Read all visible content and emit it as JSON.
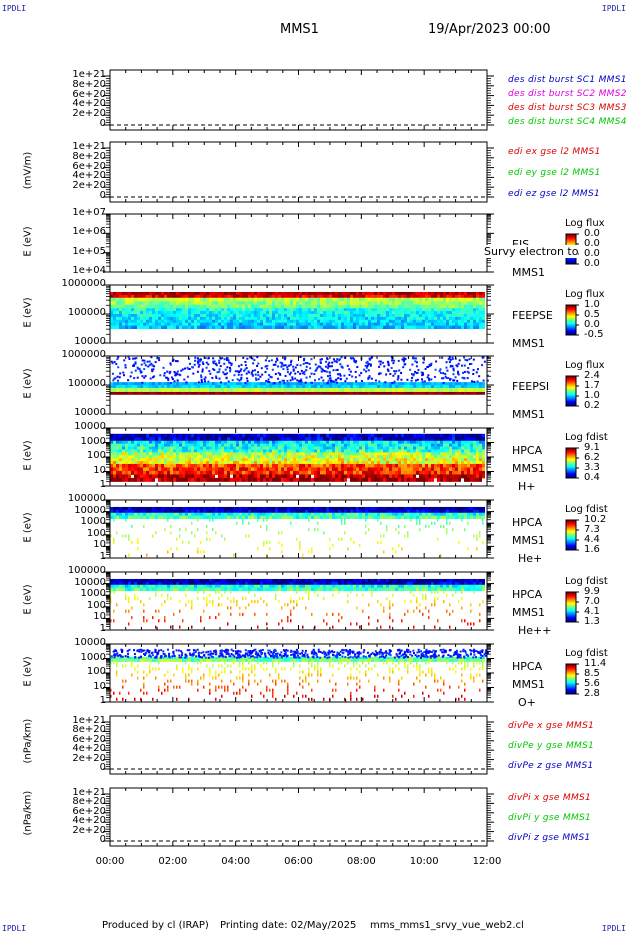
{
  "corners": {
    "tl": "IPDLI",
    "tr": "IPDLI",
    "bl": "IPDLI",
    "br": "IPDLI"
  },
  "header": {
    "spacecraft": "MMS1",
    "date": "19/Apr/2023 00:00"
  },
  "footer": {
    "produced": "Produced by  cl (IRAP)",
    "printing": "Printing date: 02/May/2025",
    "script": "mms_mms1_srvy_vue_web2.cl"
  },
  "xaxis": {
    "ticks": [
      "00:00",
      "02:00",
      "04:00",
      "06:00",
      "08:00",
      "10:00",
      "12:00"
    ]
  },
  "colors": {
    "c_blue": "#0000c8",
    "c_magenta": "#e000e0",
    "c_red": "#dd0000",
    "c_green": "#00c800"
  },
  "chart_data": [
    {
      "type": "line",
      "ylabel": "",
      "yticks": [
        "1e+21",
        "8e+20",
        "6e+20",
        "4e+20",
        "2e+20",
        "0"
      ],
      "series": [
        {
          "name": "des dist burst SC1 MMS1",
          "color": "#0000c8"
        },
        {
          "name": "des dist burst SC2 MMS2",
          "color": "#e000e0"
        },
        {
          "name": "des dist burst SC3 MMS3",
          "color": "#dd0000"
        },
        {
          "name": "des dist burst SC4 MMS4",
          "color": "#00c800"
        }
      ]
    },
    {
      "type": "line",
      "ylabel": "(mV/m)",
      "yticks": [
        "1e+21",
        "8e+20",
        "6e+20",
        "4e+20",
        "2e+20",
        "0"
      ],
      "series": [
        {
          "name": "edi ex gse l2 MMS1",
          "color": "#dd0000"
        },
        {
          "name": "edi ey gse l2 MMS1",
          "color": "#00c800"
        },
        {
          "name": "edi ez gse l2 MMS1",
          "color": "#0000c8"
        }
      ]
    },
    {
      "type": "heatmap",
      "ylabel": "E (eV)",
      "yticks": [
        "1e+07",
        "1e+06",
        "1e+05",
        "1e+04"
      ],
      "inst": [
        "EIS",
        "MMS1"
      ],
      "overlay": "Survy electron to",
      "cbar_title": "Log flux",
      "cbar_values": [
        "0.0",
        "0.0",
        "0.0",
        "0.0"
      ]
    },
    {
      "type": "heatmap",
      "ylabel": "E (eV)",
      "yticks": [
        "1000000",
        "100000",
        "10000"
      ],
      "inst": [
        "FEEPSE",
        "MMS1"
      ],
      "cbar_title": "Log flux",
      "cbar_values": [
        "1.0",
        "0.5",
        "0.0",
        "-0.5"
      ]
    },
    {
      "type": "heatmap",
      "ylabel": "E (eV)",
      "yticks": [
        "1000000",
        "100000",
        "10000"
      ],
      "inst": [
        "FEEPSI",
        "MMS1"
      ],
      "cbar_title": "Log flux",
      "cbar_values": [
        "2.4",
        "1.7",
        "1.0",
        "0.2"
      ]
    },
    {
      "type": "heatmap",
      "ylabel": "E (eV)",
      "yticks": [
        "10000",
        "1000",
        "100",
        "10",
        "1"
      ],
      "inst": [
        "HPCA",
        "MMS1",
        "H+"
      ],
      "cbar_title": "Log fdist",
      "cbar_values": [
        "9.1",
        "6.2",
        "3.3",
        "0.4"
      ]
    },
    {
      "type": "heatmap",
      "ylabel": "E (eV)",
      "yticks": [
        "100000",
        "10000",
        "1000",
        "100",
        "10",
        "1"
      ],
      "inst": [
        "HPCA",
        "MMS1",
        "He+"
      ],
      "cbar_title": "Log fdist",
      "cbar_values": [
        "10.2",
        "7.3",
        "4.4",
        "1.6"
      ]
    },
    {
      "type": "heatmap",
      "ylabel": "E (eV)",
      "yticks": [
        "100000",
        "10000",
        "1000",
        "100",
        "10",
        "1"
      ],
      "inst": [
        "HPCA",
        "MMS1",
        "He++"
      ],
      "cbar_title": "Log fdist",
      "cbar_values": [
        "9.9",
        "7.0",
        "4.1",
        "1.3"
      ]
    },
    {
      "type": "heatmap",
      "ylabel": "E (eV)",
      "yticks": [
        "10000",
        "1000",
        "100",
        "10",
        "1"
      ],
      "inst": [
        "HPCA",
        "MMS1",
        "O+"
      ],
      "cbar_title": "Log fdist",
      "cbar_values": [
        "11.4",
        "8.5",
        "5.6",
        "2.8"
      ]
    },
    {
      "type": "line",
      "ylabel": "(nPa/km)",
      "yticks": [
        "1e+21",
        "8e+20",
        "6e+20",
        "4e+20",
        "2e+20",
        "0"
      ],
      "series": [
        {
          "name": "divPe x gse MMS1",
          "color": "#dd0000"
        },
        {
          "name": "divPe y gse MMS1",
          "color": "#00c800"
        },
        {
          "name": "divPe z gse MMS1",
          "color": "#0000c8"
        }
      ]
    },
    {
      "type": "line",
      "ylabel": "(nPa/km)",
      "yticks": [
        "1e+21",
        "8e+20",
        "6e+20",
        "4e+20",
        "2e+20",
        "0"
      ],
      "series": [
        {
          "name": "divPi x gse MMS1",
          "color": "#dd0000"
        },
        {
          "name": "divPi y gse MMS1",
          "color": "#00c800"
        },
        {
          "name": "divPi z gse MMS1",
          "color": "#0000c8"
        }
      ]
    }
  ]
}
